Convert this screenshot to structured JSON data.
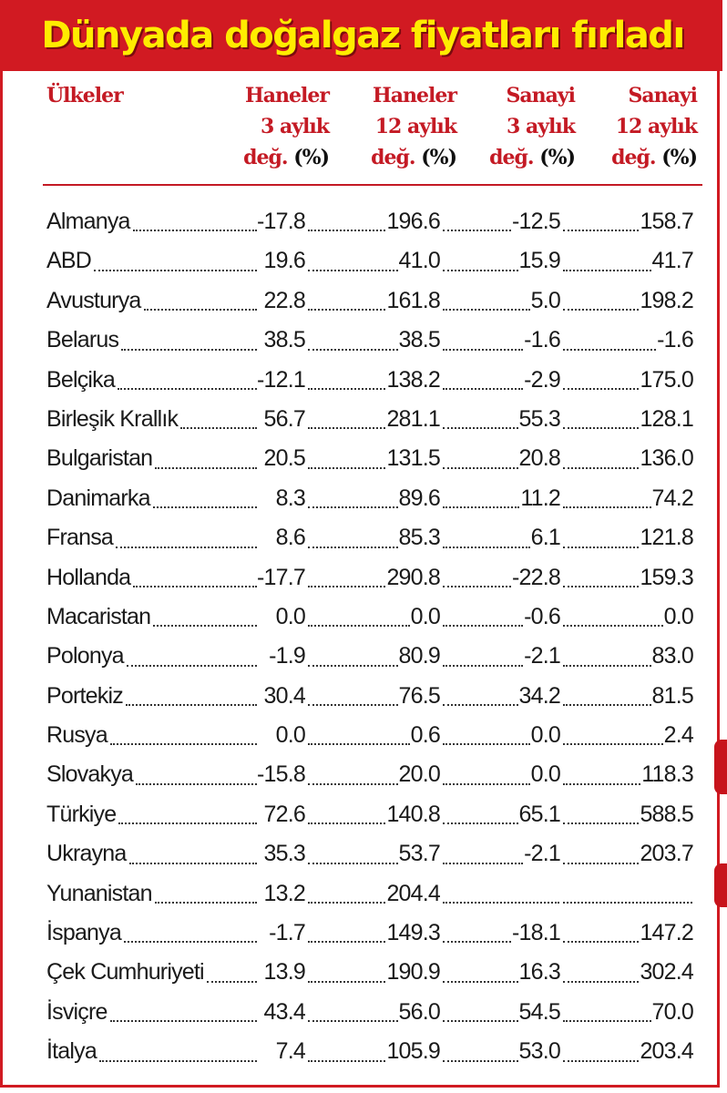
{
  "title": "Dünyada doğalgaz fiyatları fırladı",
  "colors": {
    "accent": "#d11a22",
    "title_text": "#ffec00",
    "header_text": "#c41a24"
  },
  "columns": [
    {
      "label_lines": [
        "Ülkeler"
      ]
    },
    {
      "label_lines": [
        "Haneler",
        "3 aylık",
        "değ. (%)"
      ]
    },
    {
      "label_lines": [
        "Haneler",
        "12 aylık",
        "değ. (%)"
      ]
    },
    {
      "label_lines": [
        "Sanayi",
        "3 aylık",
        "değ. (%)"
      ]
    },
    {
      "label_lines": [
        "Sanayi",
        "12 aylık",
        "değ. (%)"
      ]
    }
  ],
  "rows": [
    [
      "Almanya",
      "-17.8",
      "196.6",
      "-12.5",
      "158.7"
    ],
    [
      "ABD",
      "19.6",
      "41.0",
      "15.9",
      "41.7"
    ],
    [
      "Avusturya",
      "22.8",
      "161.8",
      "5.0",
      "198.2"
    ],
    [
      "Belarus",
      "38.5",
      "38.5",
      "-1.6",
      "-1.6"
    ],
    [
      "Belçika",
      "-12.1",
      "138.2",
      "-2.9",
      "175.0"
    ],
    [
      "Birleşik Krallık",
      "56.7",
      "281.1",
      "55.3",
      "128.1"
    ],
    [
      "Bulgaristan",
      "20.5",
      "131.5",
      "20.8",
      "136.0"
    ],
    [
      "Danimarka",
      "8.3",
      "89.6",
      "11.2",
      "74.2"
    ],
    [
      "Fransa",
      "8.6",
      "85.3",
      "6.1",
      "121.8"
    ],
    [
      "Hollanda",
      "-17.7",
      "290.8",
      "-22.8",
      "159.3"
    ],
    [
      "Macaristan",
      "0.0",
      "0.0",
      "-0.6",
      "0.0"
    ],
    [
      "Polonya",
      "-1.9",
      "80.9",
      "-2.1",
      "83.0"
    ],
    [
      "Portekiz",
      "30.4",
      "76.5",
      "34.2",
      "81.5"
    ],
    [
      "Rusya",
      "0.0",
      "0.6",
      "0.0",
      "2.4"
    ],
    [
      "Slovakya",
      "-15.8",
      "20.0",
      "0.0",
      "118.3"
    ],
    [
      "Türkiye",
      "72.6",
      "140.8",
      "65.1",
      "588.5"
    ],
    [
      "Ukrayna",
      "35.3",
      "53.7",
      "-2.1",
      "203.7"
    ],
    [
      "Yunanistan",
      "13.2",
      "204.4",
      "",
      ""
    ],
    [
      "İspanya",
      "-1.7",
      "149.3",
      "-18.1",
      "147.2"
    ],
    [
      "Çek Cumhuriyeti",
      "13.9",
      "190.9",
      "16.3",
      "302.4"
    ],
    [
      "İsviçre",
      "43.4",
      "56.0",
      "54.5",
      "70.0"
    ],
    [
      "İtalya",
      "7.4",
      "105.9",
      "53.0",
      "203.4"
    ]
  ]
}
